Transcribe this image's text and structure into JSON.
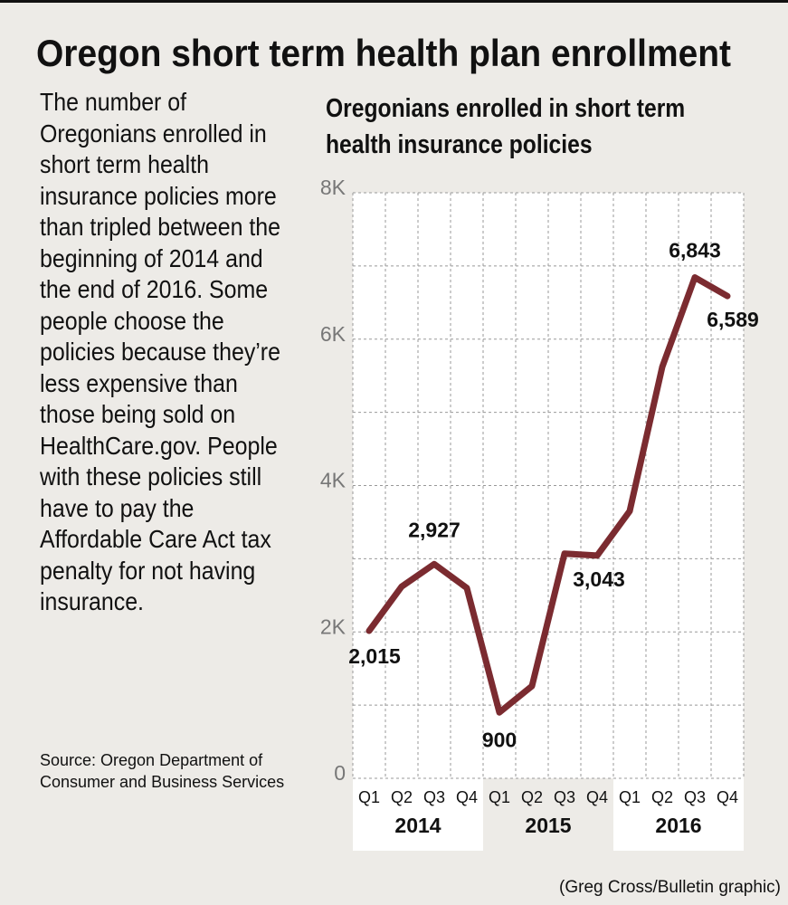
{
  "header": {
    "title": "Oregon short term health plan enrollment"
  },
  "body": {
    "paragraph": "The number of Oregonians enrolled in short term health insurance policies more than tripled between the beginning of 2014 and the end of 2016. Some people choose the policies because they’re less expensive than those being sold on HealthCare.gov. People with these policies still have to pay the Affordable Care Act tax penalty for not having insurance.",
    "source": "Source: Oregon Department of Consumer and Business Services"
  },
  "credit": "(Greg Cross/Bulletin graphic)",
  "chart_data": {
    "type": "line",
    "title": "Oregonians enrolled in short term health insurance policies",
    "categories": [
      "Q1",
      "Q2",
      "Q3",
      "Q4",
      "Q1",
      "Q2",
      "Q3",
      "Q4",
      "Q1",
      "Q2",
      "Q3",
      "Q4"
    ],
    "groups": [
      "2014",
      "2015",
      "2016"
    ],
    "series": [
      {
        "name": "Enrollment",
        "color": "#7b2b30",
        "values": [
          2015,
          2620,
          2927,
          2600,
          900,
          1260,
          3070,
          3043,
          3650,
          5620,
          6843,
          6589
        ],
        "value_labels": [
          "2,015",
          null,
          "2,927",
          null,
          "900",
          null,
          null,
          "3,043",
          null,
          null,
          "6,843",
          "6,589"
        ]
      }
    ],
    "ylim": [
      0,
      8000
    ],
    "yticks": [
      0,
      {
        "value": 2000,
        "label": "2K"
      },
      {
        "value": 4000,
        "label": "4K"
      },
      {
        "value": 6000,
        "label": "6K"
      },
      {
        "value": 8000,
        "label": "8K"
      }
    ],
    "minor_yticks": [
      1000,
      3000,
      5000,
      7000
    ],
    "grid": true
  }
}
